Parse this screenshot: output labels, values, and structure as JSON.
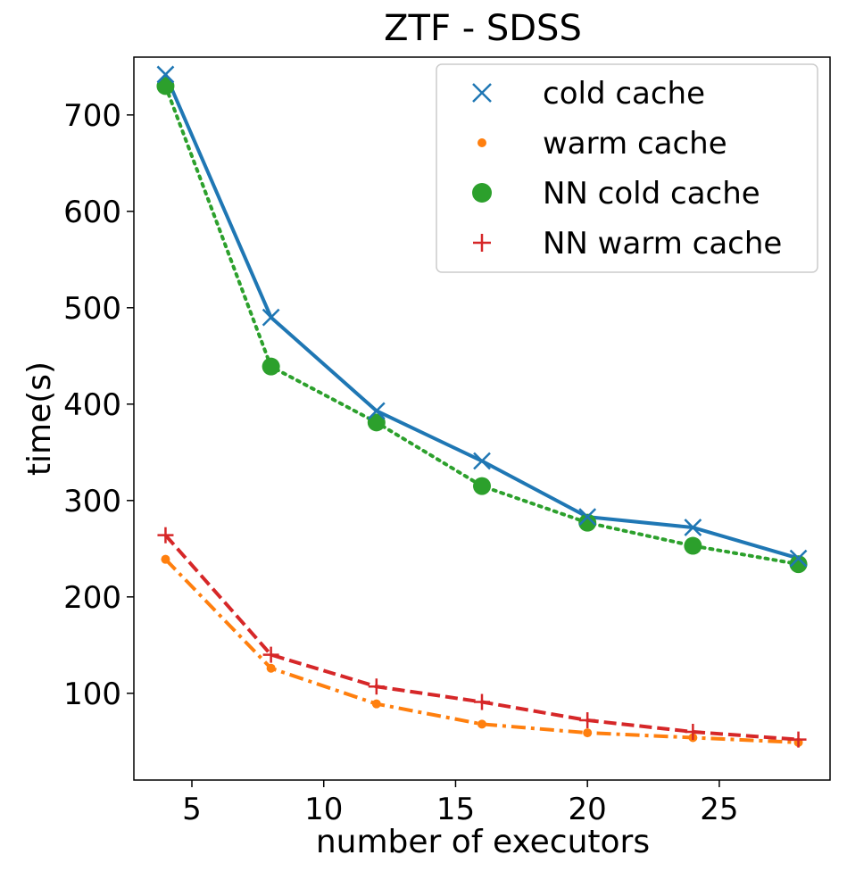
{
  "chart_data": {
    "type": "line",
    "title": "ZTF - SDSS",
    "xlabel": "number of executors",
    "ylabel": "time(s)",
    "xlim": [
      2.8,
      29.2
    ],
    "ylim": [
      10,
      760
    ],
    "xticks": [
      5,
      10,
      15,
      20,
      25
    ],
    "yticks": [
      100,
      200,
      300,
      400,
      500,
      600,
      700
    ],
    "x": [
      4,
      8,
      12,
      16,
      20,
      24,
      28
    ],
    "legend_position": "top-right",
    "grid": false,
    "series": [
      {
        "name": "cold cache",
        "color": "#1f77b4",
        "marker": "x",
        "linestyle": "solid",
        "values": [
          742,
          490,
          393,
          341,
          283,
          272,
          240
        ]
      },
      {
        "name": "warm cache",
        "color": "#ff7f0e",
        "marker": "dot",
        "linestyle": "dashdot",
        "values": [
          239,
          126,
          89,
          68,
          59,
          54,
          49
        ]
      },
      {
        "name": "NN cold cache",
        "color": "#2ca02c",
        "marker": "circle",
        "linestyle": "dotted",
        "values": [
          730,
          439,
          381,
          315,
          277,
          253,
          234
        ]
      },
      {
        "name": "NN warm cache",
        "color": "#d62728",
        "marker": "plus",
        "linestyle": "dashed",
        "values": [
          264,
          140,
          107,
          91,
          72,
          60,
          52
        ]
      }
    ]
  }
}
